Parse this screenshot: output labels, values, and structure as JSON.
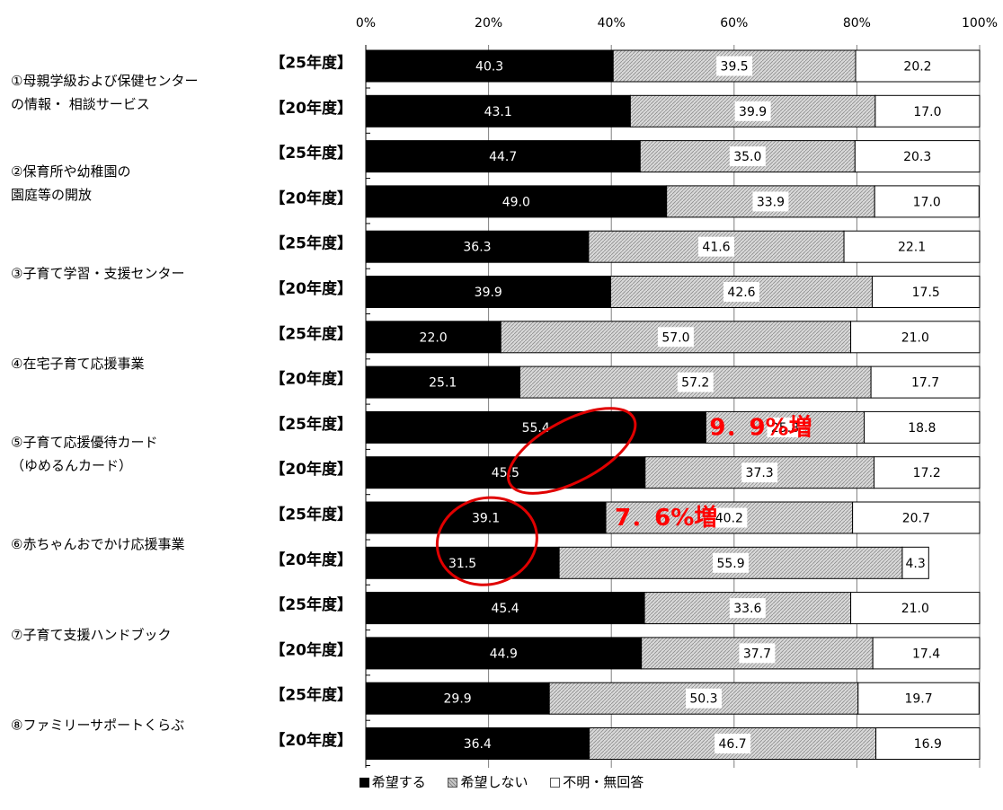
{
  "chart_data": {
    "type": "bar",
    "orientation": "horizontal",
    "stacked": true,
    "percent": true,
    "title": "",
    "xlabel": "",
    "ylabel": "",
    "xlim": [
      0,
      100
    ],
    "x_tick_labels": [
      "0%",
      "20%",
      "40%",
      "60%",
      "80%",
      "100%"
    ],
    "grid": "vertical",
    "legend_position": "bottom",
    "series": [
      {
        "name": "希望する",
        "color": "#000000",
        "pattern": "solid"
      },
      {
        "name": "希望しない",
        "color": "#c8c8c8",
        "pattern": "hatched"
      },
      {
        "name": "不明・無回答",
        "color": "#ffffff",
        "pattern": "solid"
      }
    ],
    "groups": [
      {
        "label_lines": [
          "①母親学級および保健センター",
          "の情報・ 相談サービス"
        ],
        "rows": [
          {
            "label": "【25年度】",
            "values": [
              40.3,
              39.5,
              20.2
            ],
            "labels": [
              "40.3",
              "39.5",
              "20.2"
            ]
          },
          {
            "label": "【20年度】",
            "values": [
              43.1,
              39.9,
              17.0
            ],
            "labels": [
              "43.1",
              "39.9",
              "17.0"
            ]
          }
        ]
      },
      {
        "label_lines": [
          "②保育所や幼稚園の",
          "園庭等の開放"
        ],
        "rows": [
          {
            "label": "【25年度】",
            "values": [
              44.7,
              35.0,
              20.3
            ],
            "labels": [
              "44.7",
              "35.0",
              "20.3"
            ]
          },
          {
            "label": "【20年度】",
            "values": [
              49.0,
              33.9,
              17.0
            ],
            "labels": [
              "49.0",
              "33.9",
              "17.0"
            ]
          }
        ]
      },
      {
        "label_lines": [
          "③子育て学習・支援センター"
        ],
        "rows": [
          {
            "label": "【25年度】",
            "values": [
              36.3,
              41.6,
              22.1
            ],
            "labels": [
              "36.3",
              "41.6",
              "22.1"
            ]
          },
          {
            "label": "【20年度】",
            "values": [
              39.9,
              42.6,
              17.5
            ],
            "labels": [
              "39.9",
              "42.6",
              "17.5"
            ]
          }
        ]
      },
      {
        "label_lines": [
          "④在宅子育て応援事業"
        ],
        "rows": [
          {
            "label": "【25年度】",
            "values": [
              22.0,
              57.0,
              21.0
            ],
            "labels": [
              "22.0",
              "57.0",
              "21.0"
            ]
          },
          {
            "label": "【20年度】",
            "values": [
              25.1,
              57.2,
              17.7
            ],
            "labels": [
              "25.1",
              "57.2",
              "17.7"
            ]
          }
        ]
      },
      {
        "label_lines": [
          "⑤子育て応援優待カード",
          "（ゆめるんカード）"
        ],
        "rows": [
          {
            "label": "【25年度】",
            "values": [
              55.4,
              25.8,
              18.8
            ],
            "labels": [
              "55.4",
              "25.8",
              "18.8"
            ]
          },
          {
            "label": "【20年度】",
            "values": [
              45.5,
              37.3,
              17.2
            ],
            "labels": [
              "45.5",
              "37.3",
              "17.2"
            ]
          }
        ]
      },
      {
        "label_lines": [
          "⑥赤ちゃんおでかけ応援事業"
        ],
        "rows": [
          {
            "label": "【25年度】",
            "values": [
              39.1,
              40.2,
              20.7
            ],
            "labels": [
              "39.1",
              "40.2",
              "20.7"
            ]
          },
          {
            "label": "【20年度】",
            "values": [
              31.5,
              55.9,
              4.3
            ],
            "labels": [
              "31.5",
              "55.9",
              "4.3"
            ]
          }
        ]
      },
      {
        "label_lines": [
          "⑦子育て支援ハンドブック"
        ],
        "rows": [
          {
            "label": "【25年度】",
            "values": [
              45.4,
              33.6,
              21.0
            ],
            "labels": [
              "45.4",
              "33.6",
              "21.0"
            ]
          },
          {
            "label": "【20年度】",
            "values": [
              44.9,
              37.7,
              17.4
            ],
            "labels": [
              "44.9",
              "37.7",
              "17.4"
            ]
          }
        ]
      },
      {
        "label_lines": [
          "⑧ファミリーサポートくらぶ"
        ],
        "rows": [
          {
            "label": "【25年度】",
            "values": [
              29.9,
              50.3,
              19.7
            ],
            "labels": [
              "29.9",
              "50.3",
              "19.7"
            ]
          },
          {
            "label": "【20年度】",
            "values": [
              36.4,
              46.7,
              16.9
            ],
            "labels": [
              "36.4",
              "46.7",
              "16.9"
            ]
          }
        ]
      }
    ],
    "annotations": [
      {
        "text": "9．9%増",
        "color": "#ff0000",
        "group": 4
      },
      {
        "text": "7．6%増",
        "color": "#ff0000",
        "group": 5
      }
    ]
  },
  "legend": {
    "items": [
      {
        "marker": "■",
        "label": "希望する"
      },
      {
        "marker": "▨",
        "label": "希望しない"
      },
      {
        "marker": "□",
        "label": "不明・無回答"
      }
    ]
  }
}
